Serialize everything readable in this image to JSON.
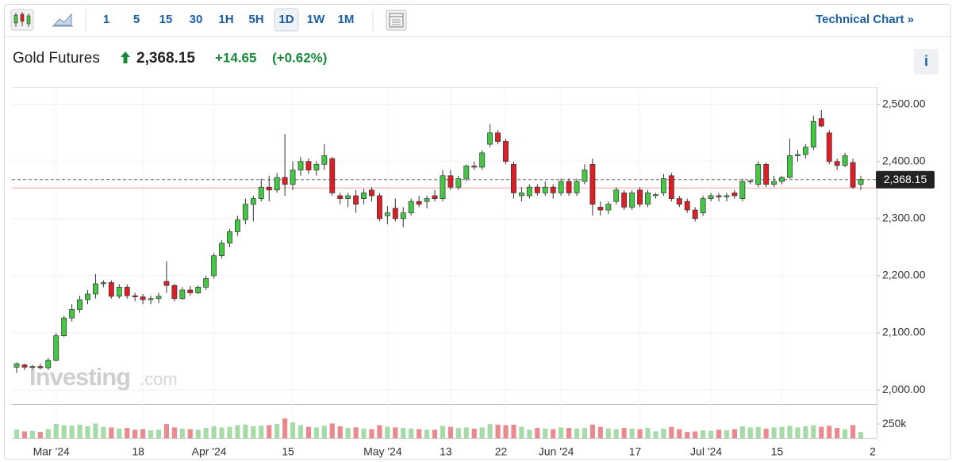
{
  "toolbar": {
    "intervals": [
      "1",
      "5",
      "15",
      "30",
      "1H",
      "5H",
      "1D",
      "1W",
      "1M"
    ],
    "active": "1D",
    "technical_chart": "Technical Chart »"
  },
  "header": {
    "name": "Gold Futures",
    "price": "2,368.15",
    "change": "+14.65",
    "change_pct": "(+0.62%)",
    "info": "i"
  },
  "watermark": {
    "brand": "Investing",
    "suffix": ".com"
  },
  "chart_data": {
    "type": "candlestick",
    "categories": [
      null,
      null,
      null,
      null,
      null,
      "Mar '24",
      null,
      null,
      null,
      null,
      null,
      null,
      null,
      null,
      null,
      null,
      "18",
      null,
      null,
      null,
      null,
      null,
      null,
      null,
      null,
      "Apr '24",
      null,
      null,
      null,
      null,
      null,
      null,
      null,
      null,
      null,
      "15",
      null,
      null,
      null,
      null,
      null,
      null,
      null,
      null,
      null,
      null,
      null,
      "May '24",
      null,
      null,
      null,
      null,
      null,
      null,
      null,
      "13",
      null,
      null,
      null,
      null,
      null,
      null,
      "22",
      null,
      null,
      null,
      null,
      null,
      null,
      "Jun '24",
      null,
      null,
      null,
      null,
      null,
      null,
      null,
      null,
      null,
      "17",
      null,
      null,
      null,
      null,
      null,
      null,
      null,
      null,
      "Jul '24",
      null,
      null,
      null,
      null,
      null,
      null,
      null,
      null,
      "15",
      null,
      null,
      null,
      null,
      null,
      null,
      null,
      null,
      null,
      null
    ],
    "x_end_label": "2",
    "open": [
      2040,
      2044,
      2040,
      2041,
      2039,
      2052,
      2095,
      2126,
      2141,
      2158,
      2168,
      2186,
      2188,
      2164,
      2180,
      2165,
      2163,
      2158,
      2160,
      2190,
      2183,
      2160,
      2175,
      2170,
      2180,
      2200,
      2235,
      2257,
      2277,
      2298,
      2325,
      2335,
      2355,
      2350,
      2372,
      2360,
      2385,
      2400,
      2385,
      2395,
      2405,
      2340,
      2335,
      2340,
      2335,
      2350,
      2340,
      2305,
      2318,
      2300,
      2310,
      2330,
      2330,
      2340,
      2335,
      2375,
      2355,
      2370,
      2392,
      2390,
      2430,
      2450,
      2435,
      2395,
      2340,
      2340,
      2355,
      2345,
      2355,
      2345,
      2365,
      2345,
      2365,
      2395,
      2320,
      2315,
      2330,
      2345,
      2320,
      2350,
      2325,
      2340,
      2345,
      2375,
      2335,
      2330,
      2315,
      2310,
      2335,
      2340,
      2338,
      2345,
      2335,
      2365,
      2360,
      2395,
      2360,
      2365,
      2372,
      2410,
      2412,
      2425,
      2475,
      2450,
      2400,
      2393,
      2398,
      2360
    ],
    "high": [
      2048,
      2046,
      2044,
      2046,
      2056,
      2100,
      2130,
      2150,
      2165,
      2175,
      2203,
      2192,
      2192,
      2185,
      2185,
      2170,
      2168,
      2165,
      2170,
      2225,
      2185,
      2180,
      2182,
      2183,
      2200,
      2240,
      2262,
      2282,
      2305,
      2335,
      2340,
      2370,
      2375,
      2380,
      2448,
      2400,
      2408,
      2405,
      2400,
      2430,
      2408,
      2345,
      2345,
      2350,
      2352,
      2355,
      2345,
      2322,
      2335,
      2320,
      2335,
      2340,
      2340,
      2350,
      2385,
      2385,
      2375,
      2395,
      2400,
      2420,
      2465,
      2455,
      2440,
      2400,
      2355,
      2360,
      2360,
      2365,
      2360,
      2370,
      2370,
      2370,
      2395,
      2405,
      2330,
      2330,
      2355,
      2350,
      2350,
      2355,
      2350,
      2345,
      2378,
      2380,
      2340,
      2335,
      2320,
      2340,
      2345,
      2345,
      2345,
      2350,
      2370,
      2368,
      2400,
      2398,
      2375,
      2375,
      2440,
      2420,
      2430,
      2480,
      2490,
      2455,
      2405,
      2415,
      2405,
      2375
    ],
    "low": [
      2030,
      2035,
      2036,
      2036,
      2035,
      2050,
      2093,
      2120,
      2135,
      2150,
      2160,
      2180,
      2160,
      2160,
      2160,
      2155,
      2150,
      2150,
      2152,
      2170,
      2155,
      2158,
      2165,
      2168,
      2175,
      2195,
      2230,
      2250,
      2270,
      2290,
      2295,
      2330,
      2330,
      2345,
      2340,
      2350,
      2375,
      2378,
      2375,
      2385,
      2340,
      2325,
      2320,
      2310,
      2325,
      2330,
      2295,
      2290,
      2295,
      2285,
      2305,
      2320,
      2318,
      2330,
      2330,
      2350,
      2350,
      2365,
      2385,
      2385,
      2425,
      2430,
      2395,
      2335,
      2330,
      2335,
      2340,
      2340,
      2335,
      2340,
      2340,
      2340,
      2360,
      2305,
      2305,
      2308,
      2325,
      2315,
      2315,
      2320,
      2320,
      2335,
      2340,
      2330,
      2320,
      2310,
      2295,
      2305,
      2330,
      2330,
      2330,
      2335,
      2330,
      2360,
      2355,
      2355,
      2355,
      2360,
      2370,
      2400,
      2405,
      2420,
      2460,
      2395,
      2385,
      2390,
      2352,
      2350
    ],
    "close": [
      2046,
      2040,
      2041,
      2039,
      2052,
      2095,
      2126,
      2141,
      2158,
      2168,
      2186,
      2188,
      2164,
      2180,
      2165,
      2163,
      2158,
      2160,
      2164,
      2183,
      2160,
      2175,
      2170,
      2180,
      2195,
      2235,
      2257,
      2277,
      2298,
      2325,
      2335,
      2355,
      2350,
      2372,
      2360,
      2385,
      2400,
      2385,
      2395,
      2410,
      2345,
      2335,
      2340,
      2325,
      2345,
      2340,
      2300,
      2310,
      2300,
      2310,
      2330,
      2325,
      2335,
      2335,
      2375,
      2355,
      2370,
      2392,
      2390,
      2415,
      2450,
      2435,
      2400,
      2345,
      2345,
      2355,
      2345,
      2355,
      2345,
      2365,
      2345,
      2365,
      2385,
      2325,
      2315,
      2325,
      2350,
      2320,
      2345,
      2325,
      2345,
      2342,
      2370,
      2335,
      2325,
      2315,
      2300,
      2335,
      2340,
      2338,
      2340,
      2340,
      2365,
      2366,
      2395,
      2360,
      2365,
      2372,
      2410,
      2412,
      2425,
      2470,
      2462,
      2400,
      2393,
      2410,
      2355,
      2368.15
    ],
    "up_color": "#44c744",
    "down_color": "#dd1e26",
    "ylim": [
      1978,
      2530
    ],
    "yticks": [
      {
        "value": 2000,
        "label": "2,000.00"
      },
      {
        "value": 2100,
        "label": "2,100.00"
      },
      {
        "value": 2200,
        "label": "2,200.00"
      },
      {
        "value": 2300,
        "label": "2,300.00"
      },
      {
        "value": 2400,
        "label": "2,400.00"
      },
      {
        "value": 2500,
        "label": "2,500.00"
      }
    ],
    "grid": true,
    "last_price": 2368.15,
    "last_price_label": "2,368.15",
    "previous_close": 2353.5,
    "volume": {
      "values": [
        150000,
        120000,
        130000,
        110000,
        160000,
        250000,
        230000,
        220000,
        240000,
        210000,
        260000,
        200000,
        190000,
        170000,
        180000,
        150000,
        160000,
        140000,
        150000,
        250000,
        190000,
        170000,
        160000,
        150000,
        180000,
        210000,
        190000,
        200000,
        230000,
        240000,
        210000,
        220000,
        230000,
        250000,
        350000,
        280000,
        230000,
        200000,
        190000,
        220000,
        260000,
        210000,
        180000,
        190000,
        170000,
        160000,
        230000,
        200000,
        190000,
        180000,
        170000,
        160000,
        150000,
        150000,
        220000,
        200000,
        180000,
        190000,
        170000,
        190000,
        250000,
        240000,
        230000,
        240000,
        200000,
        150000,
        180000,
        170000,
        160000,
        190000,
        180000,
        170000,
        180000,
        240000,
        200000,
        170000,
        160000,
        180000,
        170000,
        160000,
        180000,
        120000,
        170000,
        200000,
        160000,
        110000,
        120000,
        140000,
        130000,
        150000,
        140000,
        160000,
        210000,
        190000,
        200000,
        170000,
        190000,
        200000,
        220000,
        190000,
        210000,
        230000,
        200000,
        220000,
        180000,
        160000,
        230000,
        110000
      ],
      "up_color": "#a6dba8",
      "down_color": "#ea8a8f",
      "ylim": [
        0,
        600000
      ],
      "yticks": [
        {
          "value": 250000,
          "label": "250k"
        }
      ]
    }
  }
}
